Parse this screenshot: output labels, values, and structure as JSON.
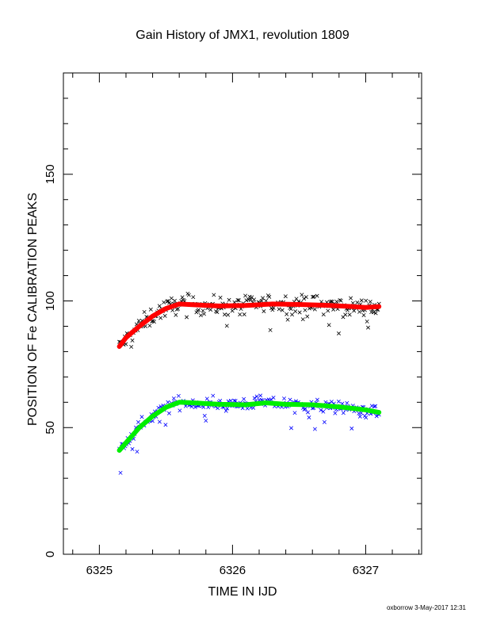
{
  "chart_data": {
    "type": "scatter",
    "title": "Gain History of JMX1, revolution 1809",
    "xlabel": "TIME IN IJD",
    "ylabel": "POSITION OF Fe CALIBRATION PEAKS",
    "xlim": [
      6324.73,
      6327.42
    ],
    "ylim": [
      0,
      190
    ],
    "x_major_ticks": [
      6325,
      6326,
      6327
    ],
    "y_major_ticks": [
      0,
      50,
      100,
      150
    ],
    "series": [
      {
        "kind": "points",
        "marker": "x",
        "color": "#000000",
        "x_start": 6325.15,
        "x_end": 6327.1,
        "n": 240,
        "curve": [
          [
            6325.15,
            82
          ],
          [
            6325.3,
            90
          ],
          [
            6325.45,
            96
          ],
          [
            6325.6,
            99
          ],
          [
            6325.8,
            98
          ],
          [
            6326.0,
            98
          ],
          [
            6326.3,
            99
          ],
          [
            6326.6,
            98.5
          ],
          [
            6326.9,
            97.5
          ],
          [
            6327.1,
            97
          ]
        ],
        "scatter": 2.6
      },
      {
        "kind": "points",
        "marker": "x",
        "color": "#0000ff",
        "x_start": 6325.15,
        "x_end": 6327.1,
        "n": 220,
        "curve": [
          [
            6325.15,
            41
          ],
          [
            6325.25,
            47
          ],
          [
            6325.35,
            53
          ],
          [
            6325.5,
            58
          ],
          [
            6325.6,
            60
          ],
          [
            6325.8,
            59.5
          ],
          [
            6326.0,
            59
          ],
          [
            6326.2,
            60
          ],
          [
            6326.5,
            59
          ],
          [
            6326.8,
            58
          ],
          [
            6327.1,
            56
          ]
        ],
        "scatter": 1.8
      },
      {
        "kind": "line",
        "color": "#ff0000",
        "width": 6,
        "points": [
          [
            6325.15,
            82
          ],
          [
            6325.2,
            85.5
          ],
          [
            6325.3,
            90
          ],
          [
            6325.4,
            94
          ],
          [
            6325.5,
            97
          ],
          [
            6325.6,
            98.8
          ],
          [
            6325.7,
            98.5
          ],
          [
            6325.9,
            98
          ],
          [
            6326.1,
            98.2
          ],
          [
            6326.3,
            98.8
          ],
          [
            6326.5,
            98.6
          ],
          [
            6326.7,
            98.3
          ],
          [
            6326.9,
            97.8
          ],
          [
            6327.0,
            97.4
          ],
          [
            6327.1,
            97.8
          ]
        ]
      },
      {
        "kind": "line",
        "color": "#00ee00",
        "width": 6,
        "points": [
          [
            6325.15,
            41
          ],
          [
            6325.2,
            44
          ],
          [
            6325.3,
            50
          ],
          [
            6325.4,
            54.5
          ],
          [
            6325.5,
            58
          ],
          [
            6325.6,
            60
          ],
          [
            6325.7,
            59.8
          ],
          [
            6325.9,
            59.2
          ],
          [
            6326.1,
            59
          ],
          [
            6326.25,
            59.8
          ],
          [
            6326.4,
            59.2
          ],
          [
            6326.6,
            59
          ],
          [
            6326.8,
            58.2
          ],
          [
            6327.0,
            57
          ],
          [
            6327.1,
            56
          ]
        ]
      }
    ]
  },
  "footer": "oxborrow  3-May-2017 12:31"
}
